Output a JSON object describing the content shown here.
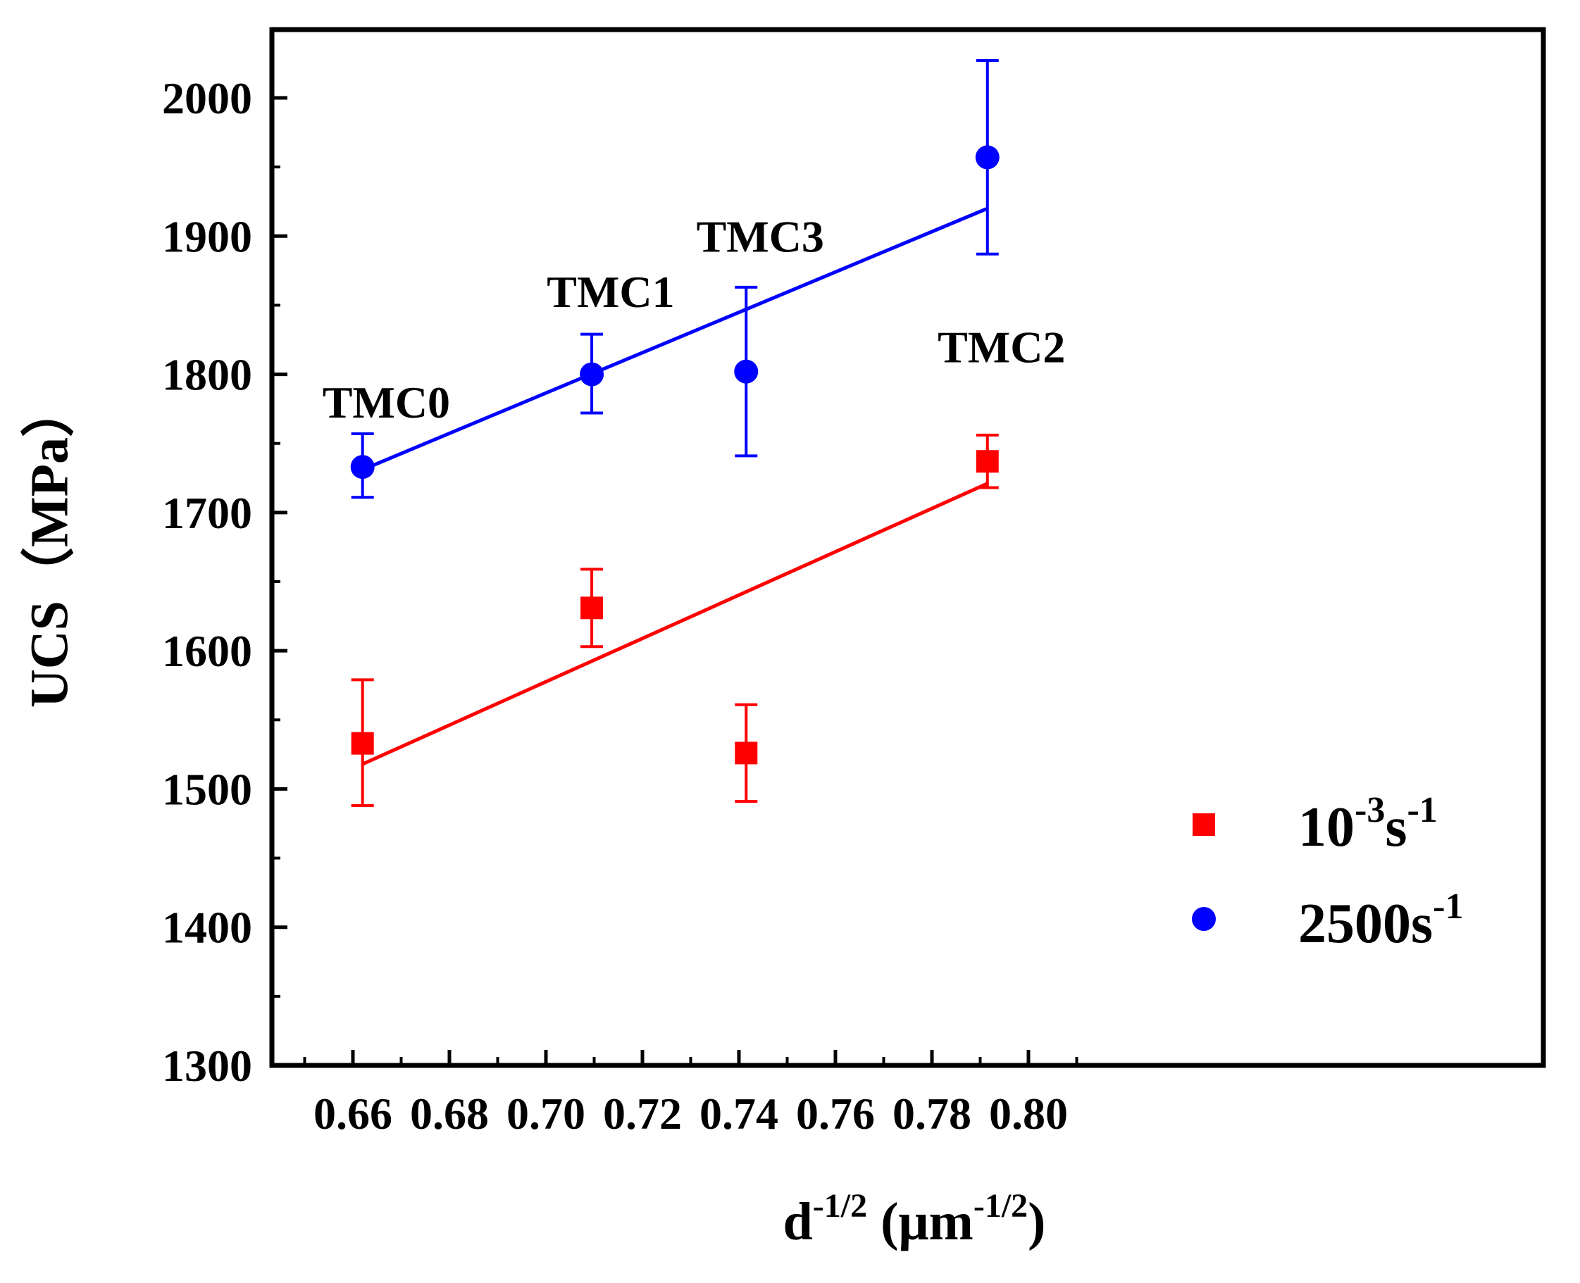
{
  "chart_data": {
    "type": "scatter",
    "xlabel": "d",
    "xlabel_sup": "-1/2",
    "xlabel_unit": " (μm",
    "xlabel_unit_sup": "-1/2",
    "xlabel_close": ")",
    "ylabel": "UCS（MPa）",
    "xlim": [
      0.65,
      0.81
    ],
    "ylim": [
      1300,
      2050
    ],
    "xticks": [
      0.66,
      0.68,
      0.7,
      0.72,
      0.74,
      0.76,
      0.78,
      0.8
    ],
    "xtick_labels": [
      "0.66",
      "0.68",
      "0.70",
      "0.72",
      "0.74",
      "0.76",
      "0.78",
      "0.80"
    ],
    "yticks": [
      1300,
      1400,
      1500,
      1600,
      1700,
      1800,
      1900,
      2000
    ],
    "ytick_labels": [
      "1300",
      "1400",
      "1500",
      "1600",
      "1700",
      "1800",
      "1900",
      "2000"
    ],
    "grid": false,
    "legend_position": "bottom-right",
    "series": [
      {
        "name": "10",
        "name_sup": "-3",
        "name_unit": "s",
        "name_unit_sup": "-1",
        "marker": "square",
        "color": "#ff0000",
        "points": [
          {
            "x": 0.662,
            "y": 1533,
            "err_low": 1488,
            "err_high": 1579
          },
          {
            "x": 0.7095,
            "y": 1631,
            "err_low": 1603,
            "err_high": 1659
          },
          {
            "x": 0.7415,
            "y": 1526,
            "err_low": 1491,
            "err_high": 1561
          },
          {
            "x": 0.7915,
            "y": 1737,
            "err_low": 1718,
            "err_high": 1756
          }
        ],
        "fit": {
          "x": [
            0.662,
            0.7915
          ],
          "y": [
            1518,
            1721
          ]
        }
      },
      {
        "name": "2500",
        "name_sup": "",
        "name_unit": "s",
        "name_unit_sup": "-1",
        "marker": "circle",
        "color": "#0000ff",
        "points": [
          {
            "x": 0.662,
            "y": 1733,
            "err_low": 1711,
            "err_high": 1757
          },
          {
            "x": 0.7095,
            "y": 1800,
            "err_low": 1772,
            "err_high": 1829
          },
          {
            "x": 0.7415,
            "y": 1802,
            "err_low": 1741,
            "err_high": 1863
          },
          {
            "x": 0.7915,
            "y": 1957,
            "err_low": 1887,
            "err_high": 2027
          }
        ],
        "fit": {
          "x": [
            0.662,
            0.7915
          ],
          "y": [
            1731,
            1920
          ]
        }
      }
    ],
    "annotations": [
      {
        "text": "TMC0",
        "x": 0.664,
        "y": 1780
      },
      {
        "text": "TMC1",
        "x": 0.7105,
        "y": 1860
      },
      {
        "text": "TMC3",
        "x": 0.7415,
        "y": 1900
      },
      {
        "text": "TMC2",
        "x": 0.7915,
        "y": 1820
      }
    ]
  }
}
